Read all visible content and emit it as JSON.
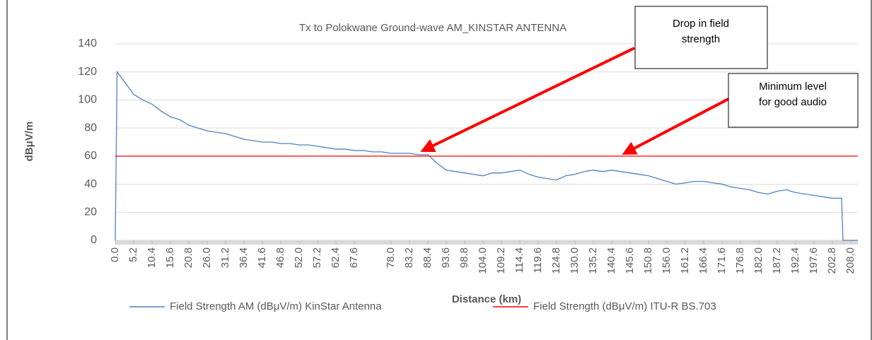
{
  "chart_data": {
    "type": "line",
    "title": "Tx to Polokwane Ground-wave AM_KINSTAR ANTENNA",
    "x_label": "Distance (km)",
    "y_label": "dBμV/m",
    "x": [
      0,
      0.5,
      2.6,
      5.2,
      7.8,
      10.4,
      13,
      15.6,
      18.2,
      20.8,
      23.4,
      26,
      28.6,
      31.2,
      33.8,
      36.4,
      39,
      41.6,
      44.2,
      46.8,
      49.4,
      52,
      54.6,
      57.2,
      59.8,
      62.4,
      65,
      67.6,
      70.2,
      72.8,
      75.4,
      78,
      80.6,
      83.2,
      85.8,
      88.4,
      91,
      93.6,
      96.2,
      98.8,
      101.4,
      104,
      106.6,
      109.2,
      111.8,
      114.4,
      117,
      119.6,
      122.2,
      124.8,
      127.4,
      130,
      132.6,
      135.2,
      137.8,
      140.4,
      143,
      145.6,
      148.2,
      150.8,
      153.4,
      156,
      158.6,
      161.2,
      163.8,
      166.4,
      169,
      171.6,
      174.2,
      176.8,
      179.4,
      182,
      184.6,
      187.2,
      189.8,
      192.4,
      195,
      197.6,
      200.2,
      202.8,
      205.4,
      205.8,
      208,
      210
    ],
    "series": [
      {
        "name": "Field Strength AM (dBμV/m) KinStar Antenna",
        "color": "#4f81bd",
        "values": [
          0,
          120,
          113,
          104,
          100,
          97,
          92,
          88,
          86,
          82,
          80,
          78,
          77,
          76,
          74,
          72,
          71,
          70,
          70,
          69,
          69,
          68,
          68,
          67,
          66,
          65,
          65,
          64,
          64,
          63,
          63,
          62,
          62,
          62,
          61,
          61,
          55,
          50,
          49,
          48,
          47,
          46,
          48,
          48,
          49,
          50,
          47,
          45,
          44,
          43,
          46,
          47,
          49,
          50,
          49,
          50,
          49,
          48,
          47,
          46,
          44,
          42,
          40,
          41,
          42,
          42,
          41,
          40,
          38,
          37,
          36,
          34,
          33,
          35,
          36,
          34,
          33,
          32,
          31,
          30,
          30,
          0,
          0,
          0
        ]
      },
      {
        "name": "Field Strength (dBμV/m) ITU-R BS.703",
        "color": "#ff0000",
        "values": [
          60,
          60,
          60,
          60,
          60,
          60,
          60,
          60,
          60,
          60,
          60,
          60,
          60,
          60,
          60,
          60,
          60,
          60,
          60,
          60,
          60,
          60,
          60,
          60,
          60,
          60,
          60,
          60,
          60,
          60,
          60,
          60,
          60,
          60,
          60,
          60,
          60,
          60,
          60,
          60,
          60,
          60,
          60,
          60,
          60,
          60,
          60,
          60,
          60,
          60,
          60,
          60,
          60,
          60,
          60,
          60,
          60,
          60,
          60,
          60,
          60,
          60,
          60,
          60,
          60,
          60,
          60,
          60,
          60,
          60,
          60,
          60,
          60,
          60,
          60,
          60,
          60,
          60,
          60,
          60,
          60,
          60,
          60,
          60
        ]
      }
    ],
    "xlim": [
      0,
      210
    ],
    "ylim": [
      0,
      140
    ],
    "yticks": [
      0,
      20,
      40,
      60,
      80,
      100,
      120,
      140
    ],
    "xticks": [
      {
        "value": 0,
        "label": "0.0"
      },
      5.2,
      10.4,
      15.6,
      20.8,
      {
        "value": 26,
        "label": "26.0"
      },
      31.2,
      36.4,
      41.6,
      46.8,
      {
        "value": 52,
        "label": "52.0"
      },
      57.2,
      62.4,
      67.6,
      {
        "value": 78,
        "label": "78.0"
      },
      83.2,
      88.4,
      93.6,
      98.8,
      {
        "value": 104,
        "label": "104.0"
      },
      109.2,
      114.4,
      119.6,
      124.8,
      {
        "value": 130,
        "label": "130.0"
      },
      135.2,
      140.4,
      145.6,
      150.8,
      {
        "value": 156,
        "label": "156.0"
      },
      161.2,
      166.4,
      171.6,
      176.8,
      {
        "value": 182,
        "label": "182.0"
      },
      187.2,
      192.4,
      197.6,
      202.8,
      {
        "value": 208,
        "label": "208.0"
      }
    ],
    "grid": true,
    "legend": "bottom",
    "annotations": [
      {
        "lines": [
          "Drop in field",
          "strength"
        ]
      },
      {
        "lines": [
          "Minimum level",
          "for good audio"
        ]
      }
    ]
  }
}
